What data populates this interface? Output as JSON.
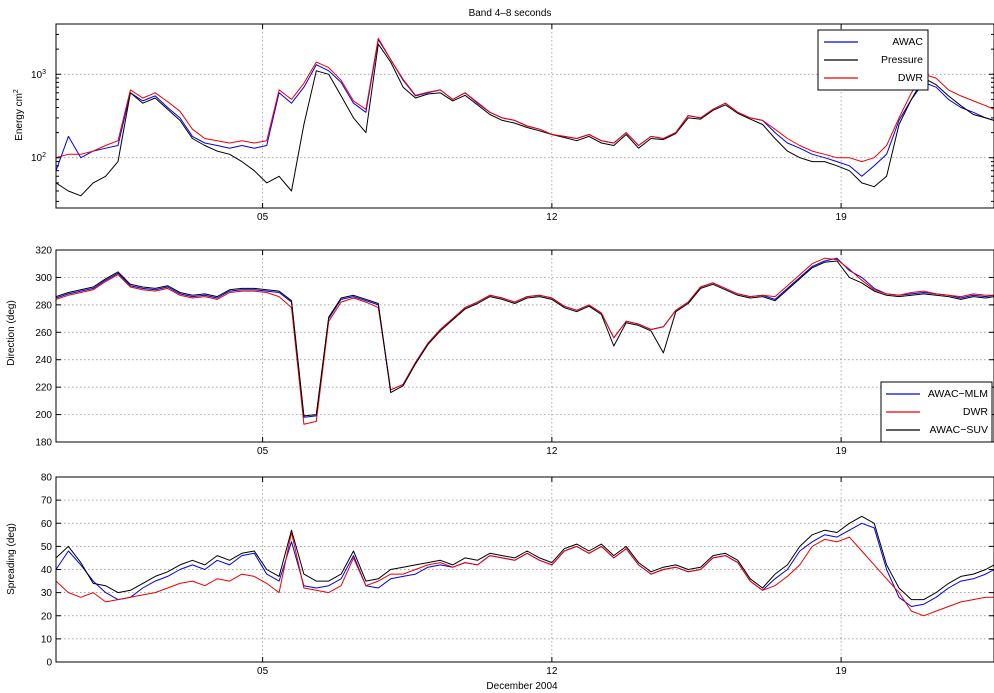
{
  "colors": {
    "blue": "#0000ee",
    "black": "#000000",
    "red": "#ee0000"
  },
  "chart_data": [
    {
      "type": "line",
      "title": "Band 4–8 seconds",
      "xlabel": "",
      "ylabel": "Energy cm",
      "ylabel_sup": "2",
      "yscale": "log",
      "ylim": [
        25,
        4000
      ],
      "xlim": [
        0,
        22.7
      ],
      "x_ticks": [
        {
          "value": 5,
          "label": "05"
        },
        {
          "value": 12,
          "label": "12"
        },
        {
          "value": 19,
          "label": "19"
        }
      ],
      "y_ticks": [
        {
          "value": 100,
          "base": "10",
          "exp": "2"
        },
        {
          "value": 1000,
          "base": "10",
          "exp": "3"
        }
      ],
      "grid": true,
      "legend_position": "top-right",
      "x": [
        0.0,
        0.3,
        0.6,
        0.9,
        1.2,
        1.5,
        1.8,
        2.1,
        2.4,
        2.7,
        3.0,
        3.3,
        3.6,
        3.9,
        4.2,
        4.5,
        4.8,
        5.1,
        5.4,
        5.7,
        6.0,
        6.3,
        6.6,
        6.9,
        7.2,
        7.5,
        7.8,
        8.1,
        8.4,
        8.7,
        9.0,
        9.3,
        9.6,
        9.9,
        10.2,
        10.5,
        10.8,
        11.1,
        11.4,
        11.7,
        12.0,
        12.3,
        12.6,
        12.9,
        13.2,
        13.5,
        13.8,
        14.1,
        14.4,
        14.7,
        15.0,
        15.3,
        15.6,
        15.9,
        16.2,
        16.5,
        16.8,
        17.1,
        17.4,
        17.7,
        18.0,
        18.3,
        18.6,
        18.9,
        19.2,
        19.5,
        19.8,
        20.1,
        20.4,
        20.7,
        21.0,
        21.3,
        21.6,
        21.9,
        22.2,
        22.5,
        22.7
      ],
      "series": [
        {
          "name": "AWAC",
          "color": "#0000ee",
          "values": [
            70,
            180,
            100,
            120,
            130,
            140,
            600,
            480,
            550,
            400,
            300,
            180,
            150,
            140,
            130,
            140,
            130,
            140,
            600,
            450,
            700,
            1300,
            1100,
            800,
            450,
            350,
            2600,
            1500,
            850,
            550,
            600,
            650,
            500,
            600,
            450,
            350,
            300,
            280,
            240,
            220,
            190,
            180,
            170,
            190,
            160,
            150,
            200,
            140,
            180,
            170,
            200,
            320,
            300,
            380,
            450,
            350,
            300,
            280,
            200,
            150,
            130,
            110,
            100,
            90,
            80,
            60,
            80,
            110,
            280,
            500,
            800,
            700,
            500,
            400,
            350,
            300,
            280
          ]
        },
        {
          "name": "Pressure",
          "color": "#000000",
          "values": [
            50,
            40,
            35,
            50,
            60,
            90,
            600,
            450,
            520,
            380,
            280,
            170,
            140,
            120,
            110,
            90,
            70,
            50,
            60,
            40,
            250,
            1100,
            1000,
            550,
            300,
            200,
            2300,
            1400,
            700,
            520,
            580,
            600,
            480,
            560,
            430,
            330,
            280,
            260,
            230,
            210,
            190,
            175,
            160,
            180,
            150,
            140,
            190,
            130,
            170,
            165,
            195,
            300,
            290,
            370,
            430,
            340,
            290,
            250,
            170,
            120,
            100,
            90,
            90,
            80,
            70,
            50,
            45,
            60,
            250,
            500,
            900,
            750,
            550,
            420,
            330,
            300,
            280
          ]
        },
        {
          "name": "DWR",
          "color": "#ee0000",
          "values": [
            100,
            110,
            110,
            120,
            140,
            160,
            650,
            520,
            600,
            470,
            360,
            220,
            170,
            160,
            150,
            160,
            150,
            160,
            650,
            500,
            780,
            1400,
            1200,
            850,
            480,
            380,
            2700,
            1500,
            870,
            560,
            610,
            650,
            500,
            600,
            460,
            350,
            300,
            280,
            240,
            220,
            190,
            180,
            170,
            190,
            160,
            150,
            200,
            140,
            180,
            170,
            200,
            320,
            300,
            380,
            450,
            350,
            300,
            280,
            220,
            170,
            140,
            120,
            110,
            100,
            100,
            90,
            100,
            140,
            300,
            600,
            1000,
            900,
            650,
            550,
            480,
            420,
            380
          ]
        }
      ]
    },
    {
      "type": "line",
      "title": "",
      "xlabel": "",
      "ylabel": "Direction (deg)",
      "ylim": [
        180,
        320
      ],
      "xlim": [
        0,
        22.7
      ],
      "x_ticks": [
        {
          "value": 5,
          "label": "05"
        },
        {
          "value": 12,
          "label": "12"
        },
        {
          "value": 19,
          "label": "19"
        }
      ],
      "y_ticks": [
        180,
        200,
        220,
        240,
        260,
        280,
        300,
        320
      ],
      "grid": true,
      "legend_position": "bottom-right",
      "x": [
        0.0,
        0.3,
        0.6,
        0.9,
        1.2,
        1.5,
        1.8,
        2.1,
        2.4,
        2.7,
        3.0,
        3.3,
        3.6,
        3.9,
        4.2,
        4.5,
        4.8,
        5.1,
        5.4,
        5.7,
        6.0,
        6.3,
        6.6,
        6.9,
        7.2,
        7.5,
        7.8,
        8.1,
        8.4,
        8.7,
        9.0,
        9.3,
        9.6,
        9.9,
        10.2,
        10.5,
        10.8,
        11.1,
        11.4,
        11.7,
        12.0,
        12.3,
        12.6,
        12.9,
        13.2,
        13.5,
        13.8,
        14.1,
        14.4,
        14.7,
        15.0,
        15.3,
        15.6,
        15.9,
        16.2,
        16.5,
        16.8,
        17.1,
        17.4,
        17.7,
        18.0,
        18.3,
        18.6,
        18.9,
        19.2,
        19.5,
        19.8,
        20.1,
        20.4,
        20.7,
        21.0,
        21.3,
        21.6,
        21.9,
        22.2,
        22.5,
        22.7
      ],
      "series": [
        {
          "name": "AWAC−MLM",
          "color": "#0000ee",
          "values": [
            285,
            288,
            290,
            292,
            298,
            303,
            294,
            292,
            291,
            293,
            288,
            286,
            287,
            285,
            290,
            291,
            291,
            290,
            289,
            282,
            198,
            199,
            270,
            284,
            286,
            283,
            280,
            218,
            222,
            238,
            252,
            262,
            270,
            278,
            282,
            287,
            285,
            282,
            286,
            287,
            285,
            279,
            276,
            280,
            274,
            256,
            268,
            266,
            262,
            264,
            276,
            282,
            293,
            296,
            292,
            288,
            286,
            287,
            284,
            292,
            300,
            308,
            312,
            314,
            305,
            300,
            292,
            288,
            287,
            288,
            289,
            288,
            287,
            285,
            287,
            286,
            287
          ]
        },
        {
          "name": "DWR",
          "color": "#ee0000",
          "values": [
            284,
            287,
            289,
            291,
            297,
            302,
            293,
            291,
            290,
            292,
            287,
            285,
            286,
            284,
            289,
            290,
            290,
            289,
            286,
            278,
            193,
            195,
            268,
            282,
            285,
            282,
            278,
            218,
            222,
            238,
            252,
            262,
            270,
            278,
            282,
            287,
            285,
            282,
            286,
            287,
            285,
            279,
            276,
            280,
            274,
            256,
            268,
            266,
            262,
            264,
            276,
            282,
            293,
            296,
            292,
            288,
            286,
            287,
            286,
            294,
            302,
            310,
            314,
            313,
            306,
            298,
            291,
            288,
            287,
            289,
            290,
            288,
            287,
            286,
            288,
            287,
            287
          ]
        },
        {
          "name": "AWAC−SUV",
          "color": "#000000",
          "values": [
            286,
            289,
            291,
            293,
            299,
            304,
            295,
            293,
            292,
            294,
            289,
            287,
            288,
            286,
            291,
            292,
            292,
            291,
            290,
            283,
            199,
            200,
            271,
            285,
            287,
            284,
            281,
            216,
            221,
            237,
            251,
            261,
            269,
            277,
            281,
            286,
            284,
            281,
            285,
            286,
            284,
            278,
            275,
            279,
            273,
            250,
            267,
            265,
            261,
            245,
            275,
            281,
            292,
            295,
            291,
            287,
            285,
            286,
            283,
            291,
            299,
            307,
            311,
            312,
            300,
            296,
            290,
            287,
            286,
            287,
            288,
            287,
            286,
            284,
            286,
            285,
            286
          ]
        }
      ]
    },
    {
      "type": "line",
      "title": "",
      "xlabel": "December 2004",
      "ylabel": "Spreading (deg)",
      "ylim": [
        0,
        80
      ],
      "xlim": [
        0,
        22.7
      ],
      "x_ticks": [
        {
          "value": 5,
          "label": "05"
        },
        {
          "value": 12,
          "label": "12"
        },
        {
          "value": 19,
          "label": "19"
        }
      ],
      "y_ticks": [
        0,
        10,
        20,
        30,
        40,
        50,
        60,
        70,
        80
      ],
      "grid": true,
      "x": [
        0.0,
        0.3,
        0.6,
        0.9,
        1.2,
        1.5,
        1.8,
        2.1,
        2.4,
        2.7,
        3.0,
        3.3,
        3.6,
        3.9,
        4.2,
        4.5,
        4.8,
        5.1,
        5.4,
        5.7,
        6.0,
        6.3,
        6.6,
        6.9,
        7.2,
        7.5,
        7.8,
        8.1,
        8.4,
        8.7,
        9.0,
        9.3,
        9.6,
        9.9,
        10.2,
        10.5,
        10.8,
        11.1,
        11.4,
        11.7,
        12.0,
        12.3,
        12.6,
        12.9,
        13.2,
        13.5,
        13.8,
        14.1,
        14.4,
        14.7,
        15.0,
        15.3,
        15.6,
        15.9,
        16.2,
        16.5,
        16.8,
        17.1,
        17.4,
        17.7,
        18.0,
        18.3,
        18.6,
        18.9,
        19.2,
        19.5,
        19.8,
        20.1,
        20.4,
        20.7,
        21.0,
        21.3,
        21.6,
        21.9,
        22.2,
        22.5,
        22.7
      ],
      "series": [
        {
          "name": "",
          "color": "#0000ee",
          "values": [
            40,
            48,
            42,
            35,
            30,
            27,
            28,
            32,
            35,
            37,
            40,
            42,
            40,
            44,
            42,
            46,
            47,
            38,
            35,
            52,
            33,
            32,
            33,
            36,
            46,
            33,
            32,
            36,
            37,
            38,
            41,
            42,
            41,
            43,
            42,
            46,
            45,
            44,
            47,
            44,
            42,
            48,
            50,
            47,
            50,
            45,
            49,
            42,
            38,
            40,
            41,
            39,
            40,
            45,
            46,
            43,
            35,
            31,
            36,
            40,
            48,
            52,
            55,
            54,
            57,
            60,
            58,
            40,
            28,
            24,
            25,
            28,
            32,
            35,
            36,
            38,
            40
          ]
        },
        {
          "name": "",
          "color": "#ee0000",
          "values": [
            35,
            30,
            28,
            30,
            26,
            27,
            28,
            29,
            30,
            32,
            34,
            35,
            33,
            36,
            35,
            38,
            37,
            34,
            30,
            56,
            32,
            31,
            30,
            33,
            45,
            33,
            35,
            38,
            38,
            40,
            42,
            43,
            41,
            43,
            42,
            46,
            45,
            44,
            47,
            44,
            42,
            48,
            50,
            47,
            50,
            45,
            49,
            42,
            38,
            40,
            41,
            39,
            40,
            45,
            46,
            43,
            35,
            31,
            33,
            37,
            42,
            50,
            53,
            52,
            54,
            48,
            42,
            36,
            30,
            22,
            20,
            22,
            24,
            26,
            27,
            28,
            28
          ]
        },
        {
          "name": "",
          "color": "#000000",
          "values": [
            45,
            50,
            43,
            34,
            33,
            30,
            31,
            34,
            37,
            39,
            42,
            44,
            42,
            46,
            44,
            47,
            48,
            40,
            37,
            57,
            38,
            35,
            35,
            38,
            48,
            35,
            36,
            40,
            41,
            42,
            43,
            44,
            42,
            45,
            44,
            47,
            46,
            45,
            48,
            45,
            43,
            49,
            51,
            48,
            51,
            46,
            50,
            43,
            39,
            41,
            42,
            40,
            41,
            46,
            47,
            44,
            36,
            32,
            38,
            42,
            50,
            55,
            57,
            56,
            60,
            63,
            60,
            42,
            32,
            27,
            27,
            30,
            34,
            37,
            38,
            40,
            42
          ]
        }
      ]
    }
  ]
}
